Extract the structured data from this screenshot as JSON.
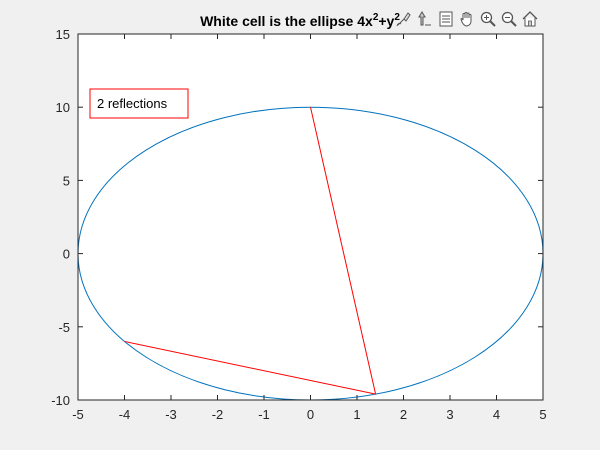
{
  "window": {
    "background": "#f0f0f0"
  },
  "chart_data": {
    "type": "line",
    "title": "White cell is the ellipse 4x²+y²",
    "title_parts": {
      "base": "White cell is the ellipse 4x",
      "sup1": "2",
      "mid": "+y",
      "sup2": "2"
    },
    "xlabel": "",
    "ylabel": "",
    "xlim": [
      -5,
      5
    ],
    "ylim": [
      -10,
      10
    ],
    "xticks": [
      -5,
      -4,
      -3,
      -2,
      -1,
      0,
      1,
      2,
      3,
      4,
      5
    ],
    "yticks": [
      -10,
      -5,
      0,
      5,
      10,
      15
    ],
    "ytick_limit": 15,
    "grid": false,
    "ellipse": {
      "center": [
        0,
        0
      ],
      "a": 5,
      "b": 10,
      "color": "#0072bd"
    },
    "reflection_path": {
      "color": "#ff0000",
      "points": [
        [
          0,
          10
        ],
        [
          1.4,
          -9.6
        ],
        [
          -4,
          -6
        ]
      ]
    },
    "annotation": {
      "text": "2 reflections",
      "location": "top-left",
      "border_color": "#ff0000"
    },
    "colors": {
      "plot_background": "#ffffff",
      "axis": "#262626"
    }
  },
  "toolbar": {
    "icons": [
      "brush-icon",
      "data-tip-icon",
      "legend-icon",
      "pan-icon",
      "zoom-in-icon",
      "zoom-out-icon",
      "home-icon"
    ]
  }
}
